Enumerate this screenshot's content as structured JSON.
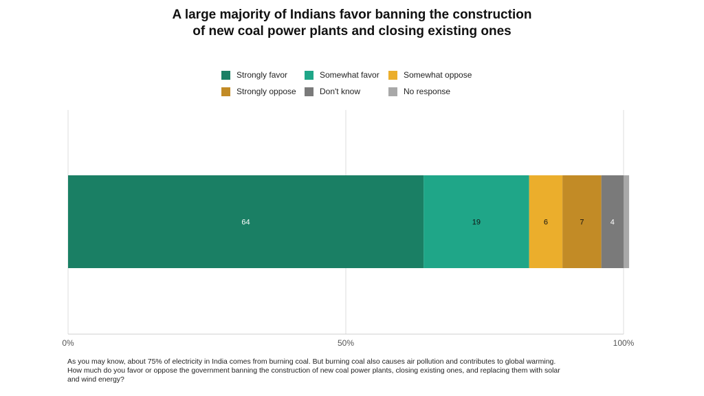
{
  "chart_data": {
    "type": "bar",
    "orientation": "horizontal",
    "stacked": true,
    "title": "A large majority of Indians favor banning the construction of new coal power plants and closing existing ones",
    "title_lines": [
      "A large majority of Indians favor banning the construction",
      "of new coal power plants and closing existing ones"
    ],
    "series": [
      {
        "name": "Strongly favor",
        "value": 64,
        "label": "64",
        "color": "#1a7f64",
        "label_color": "#ffffff"
      },
      {
        "name": "Somewhat favor",
        "value": 19,
        "label": "19",
        "color": "#1fa688",
        "label_color": "#111111"
      },
      {
        "name": "Somewhat oppose",
        "value": 6,
        "label": "6",
        "color": "#ebae2c",
        "label_color": "#111111"
      },
      {
        "name": "Strongly oppose",
        "value": 7,
        "label": "7",
        "color": "#c28b26",
        "label_color": "#111111"
      },
      {
        "name": "Don't know",
        "value": 4,
        "label": "4",
        "color": "#7a7a7a",
        "label_color": "#ffffff"
      },
      {
        "name": "No response",
        "value": 1,
        "label": "",
        "color": "#a8a8a8",
        "label_color": "#ffffff"
      }
    ],
    "x_ticks": [
      "0%",
      "50%",
      "100%"
    ],
    "xlim": [
      0,
      100
    ],
    "grid": true,
    "legend_position": "top"
  },
  "note": "As you may know, about 75% of electricity in India comes from burning coal. But burning coal also causes air pollution and contributes to global warming. How much do you favor or oppose the government banning the construction of new coal power plants, closing existing ones, and replacing them with solar and wind energy?"
}
